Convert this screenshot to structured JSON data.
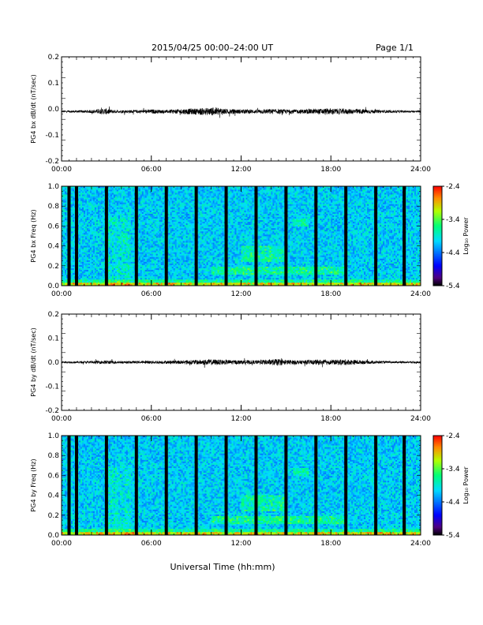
{
  "header": {
    "title": "2015/04/25  00:00–24:00 UT",
    "page": "Page 1/1"
  },
  "xlabel": "Universal Time (hh:mm)",
  "chart_data": [
    {
      "type": "line",
      "ylabel": "PG4 bx dB/dt (nT/sec)",
      "xlim": [
        0,
        24
      ],
      "ylim": [
        -0.2,
        0.2
      ],
      "x_ticks": [
        "00:00",
        "06:00",
        "12:00",
        "18:00",
        "24:00"
      ],
      "y_ticks": [
        "0.2",
        "0.1",
        "0.0",
        "-0.1",
        "-0.2"
      ],
      "series": [
        {
          "baseline": -0.01,
          "envelope": {
            "x": [
              0,
              1,
              2,
              3,
              3.5,
              4,
              5,
              6,
              7,
              8,
              9,
              10,
              10.5,
              11,
              12,
              13,
              14,
              15,
              16,
              17,
              18,
              19,
              20,
              21,
              22,
              23,
              24
            ],
            "amp": [
              0.004,
              0.004,
              0.006,
              0.012,
              0.006,
              0.006,
              0.006,
              0.008,
              0.006,
              0.01,
              0.012,
              0.015,
              0.016,
              0.01,
              0.008,
              0.008,
              0.01,
              0.008,
              0.008,
              0.01,
              0.012,
              0.01,
              0.01,
              0.006,
              0.005,
              0.004,
              0.004
            ]
          }
        }
      ]
    },
    {
      "type": "heatmap",
      "ylabel": "PG4 bx Freq (Hz)",
      "xlim": [
        0,
        24
      ],
      "ylim": [
        0.0,
        1.0
      ],
      "x_ticks": [
        "00:00",
        "06:00",
        "12:00",
        "18:00",
        "24:00"
      ],
      "y_ticks": [
        "1.0",
        "0.8",
        "0.6",
        "0.4",
        "0.2",
        "0.0"
      ],
      "colorbar": {
        "label": "Log₁₀ Power",
        "ticks": [
          "-2.4",
          "-3.4",
          "-4.4",
          "-5.4"
        ],
        "range": [
          -5.4,
          -2.4
        ]
      },
      "gaps_hours": [
        0.5,
        1.0,
        3.0,
        5.0,
        7.0,
        9.0,
        11.0,
        13.0,
        15.0,
        17.0,
        19.0,
        21.0,
        22.9
      ]
    },
    {
      "type": "line",
      "ylabel": "PG4 by dB/dt (nT/sec)",
      "xlim": [
        0,
        24
      ],
      "ylim": [
        -0.2,
        0.2
      ],
      "x_ticks": [
        "00:00",
        "06:00",
        "12:00",
        "18:00",
        "24:00"
      ],
      "y_ticks": [
        "0.2",
        "0.1",
        "0.0",
        "-0.1",
        "-0.2"
      ],
      "series": [
        {
          "baseline": 0.0,
          "envelope": {
            "x": [
              0,
              1,
              2,
              3,
              4,
              5,
              6,
              7,
              8,
              9,
              10,
              11,
              12,
              13,
              14,
              14.5,
              15,
              16,
              17,
              18,
              19,
              20,
              21,
              22,
              23,
              24
            ],
            "amp": [
              0.004,
              0.004,
              0.005,
              0.008,
              0.005,
              0.005,
              0.006,
              0.006,
              0.008,
              0.01,
              0.012,
              0.01,
              0.008,
              0.008,
              0.012,
              0.014,
              0.01,
              0.008,
              0.01,
              0.01,
              0.012,
              0.008,
              0.006,
              0.004,
              0.004,
              0.004
            ]
          }
        }
      ]
    },
    {
      "type": "heatmap",
      "ylabel": "PG4 by Freq (Hz)",
      "xlim": [
        0,
        24
      ],
      "ylim": [
        0.0,
        1.0
      ],
      "x_ticks": [
        "00:00",
        "06:00",
        "12:00",
        "18:00",
        "24:00"
      ],
      "y_ticks": [
        "1.0",
        "0.8",
        "0.6",
        "0.4",
        "0.2",
        "0.0"
      ],
      "colorbar": {
        "label": "Log₁₀ Power",
        "ticks": [
          "-2.4",
          "-3.4",
          "-4.4",
          "-5.4"
        ],
        "range": [
          -5.4,
          -2.4
        ]
      },
      "gaps_hours": [
        0.5,
        1.0,
        3.0,
        5.0,
        7.0,
        9.0,
        11.0,
        13.0,
        15.0,
        17.0,
        19.0,
        21.0,
        22.9
      ]
    }
  ]
}
